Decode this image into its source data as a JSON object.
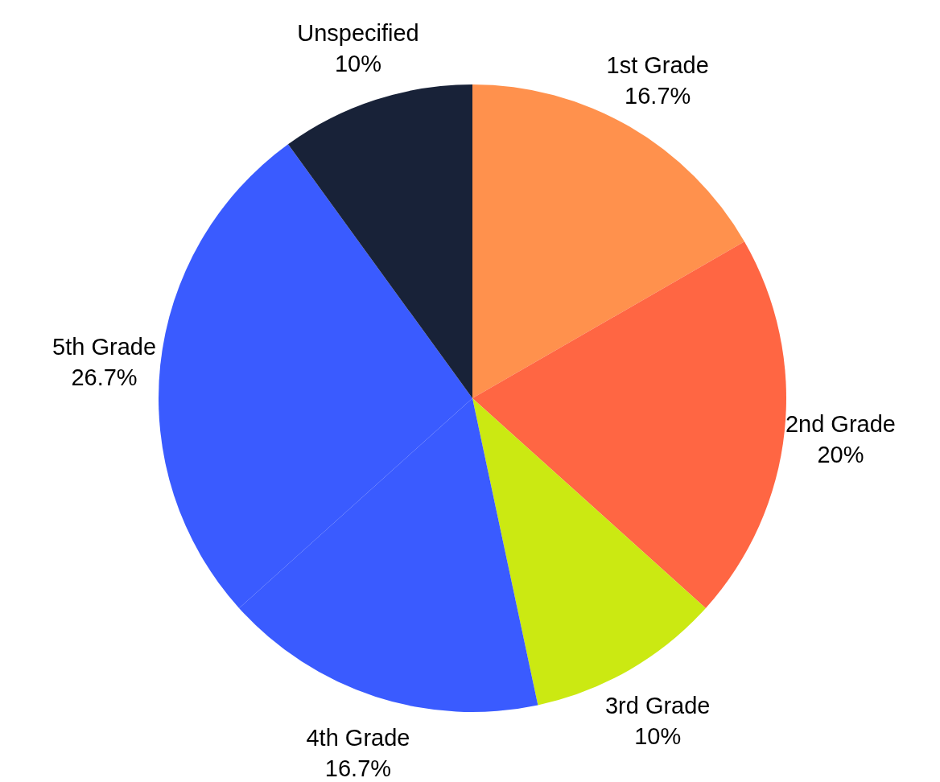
{
  "chart_data": {
    "type": "pie",
    "categories": [
      "1st Grade",
      "2nd Grade",
      "3rd Grade",
      "4th Grade",
      "5th Grade",
      "Unspecified"
    ],
    "values": [
      16.7,
      20,
      10,
      16.7,
      26.7,
      10
    ],
    "value_labels": [
      "16.7%",
      "20%",
      "10%",
      "16.7%",
      "26.7%",
      "10%"
    ],
    "colors": [
      "#ff914d",
      "#ff6643",
      "#cbe912",
      "#3a5bff",
      "#3a5bff",
      "#182238"
    ],
    "legend": false
  }
}
